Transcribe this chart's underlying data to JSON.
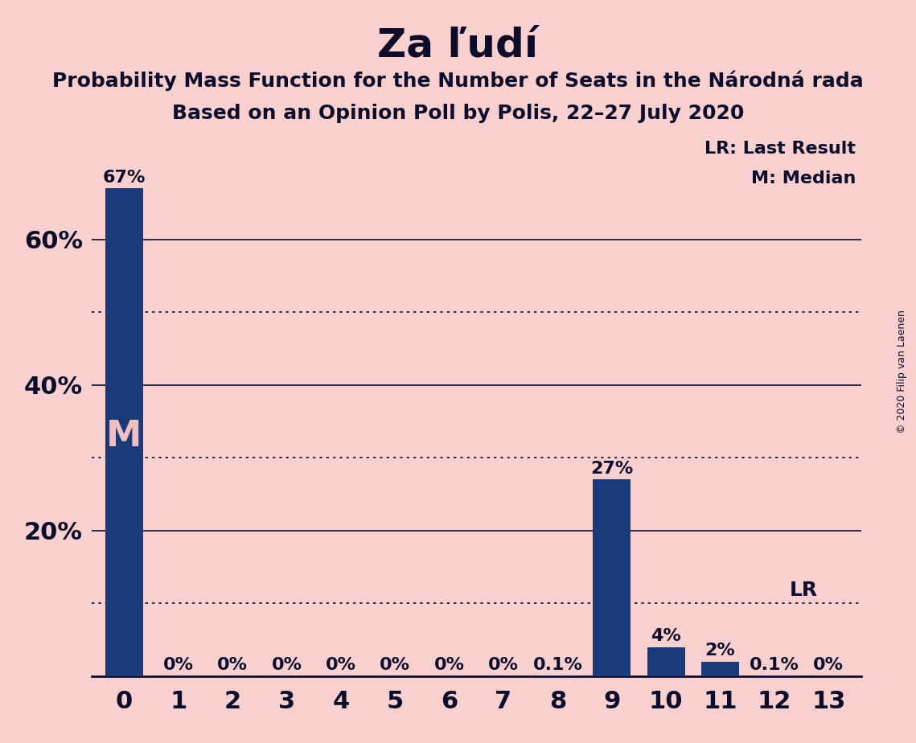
{
  "title": "Za ľudí",
  "subtitle1": "Probability Mass Function for the Number of Seats in the Národná rada",
  "subtitle2": "Based on an Opinion Poll by Polis, 22–27 July 2020",
  "copyright": "© 2020 Filip van Laenen",
  "categories": [
    0,
    1,
    2,
    3,
    4,
    5,
    6,
    7,
    8,
    9,
    10,
    11,
    12,
    13
  ],
  "values": [
    0.67,
    0.0,
    0.0,
    0.0,
    0.0,
    0.0,
    0.0,
    0.0,
    0.001,
    0.27,
    0.04,
    0.02,
    0.001,
    0.0
  ],
  "bar_labels": [
    "67%",
    "0%",
    "0%",
    "0%",
    "0%",
    "0%",
    "0%",
    "0%",
    "0.1%",
    "27%",
    "4%",
    "2%",
    "0.1%",
    "0%"
  ],
  "bar_color": "#1a3a7a",
  "background_color": "#f9d0d0",
  "text_color": "#0d0d2b",
  "median_bar": 0,
  "median_label": "M",
  "lr_value": 0.1,
  "lr_label": "LR",
  "ylim": [
    0,
    0.74
  ],
  "yticks_labeled": [
    0.2,
    0.4,
    0.6
  ],
  "ytick_labels": [
    "20%",
    "40%",
    "60%"
  ],
  "solid_gridlines": [
    0.2,
    0.4,
    0.6
  ],
  "dotted_gridlines": [
    0.1,
    0.3,
    0.5
  ],
  "legend_text1": "LR: Last Result",
  "legend_text2": "M: Median",
  "title_fontsize": 36,
  "subtitle_fontsize": 18,
  "label_fontsize": 16,
  "tick_fontsize": 22,
  "median_fontsize": 32,
  "lr_fontsize": 18
}
